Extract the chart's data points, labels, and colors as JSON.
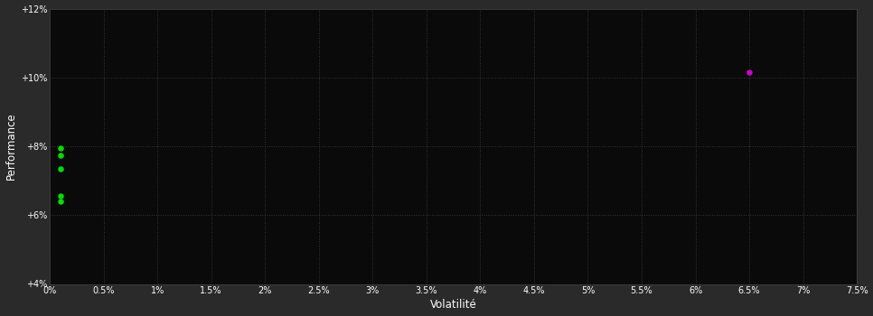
{
  "background_color": "#2a2a2a",
  "plot_bg_color": "#0a0a0a",
  "grid_color": "#444444",
  "text_color": "#ffffff",
  "xlabel": "Volatilité",
  "ylabel": "Performance",
  "xlim": [
    0,
    0.075
  ],
  "ylim": [
    0.04,
    0.12
  ],
  "xticks": [
    0.0,
    0.005,
    0.01,
    0.015,
    0.02,
    0.025,
    0.03,
    0.035,
    0.04,
    0.045,
    0.05,
    0.055,
    0.06,
    0.065,
    0.07,
    0.075
  ],
  "xtick_labels": [
    "0%",
    "0.5%",
    "1%",
    "1.5%",
    "2%",
    "2.5%",
    "3%",
    "3.5%",
    "4%",
    "4.5%",
    "5%",
    "5.5%",
    "6%",
    "6.5%",
    "7%",
    "7.5%"
  ],
  "yticks": [
    0.04,
    0.06,
    0.08,
    0.1,
    0.12
  ],
  "ytick_labels": [
    "+4%",
    "+6%",
    "+8%",
    "+10%",
    "+12%"
  ],
  "green_points": [
    [
      0.001,
      0.0795
    ],
    [
      0.001,
      0.0775
    ],
    [
      0.001,
      0.0735
    ],
    [
      0.001,
      0.0655
    ],
    [
      0.001,
      0.064
    ]
  ],
  "magenta_points": [
    [
      0.065,
      0.1015
    ]
  ],
  "green_color": "#00dd00",
  "magenta_color": "#cc00cc",
  "marker_size": 22
}
